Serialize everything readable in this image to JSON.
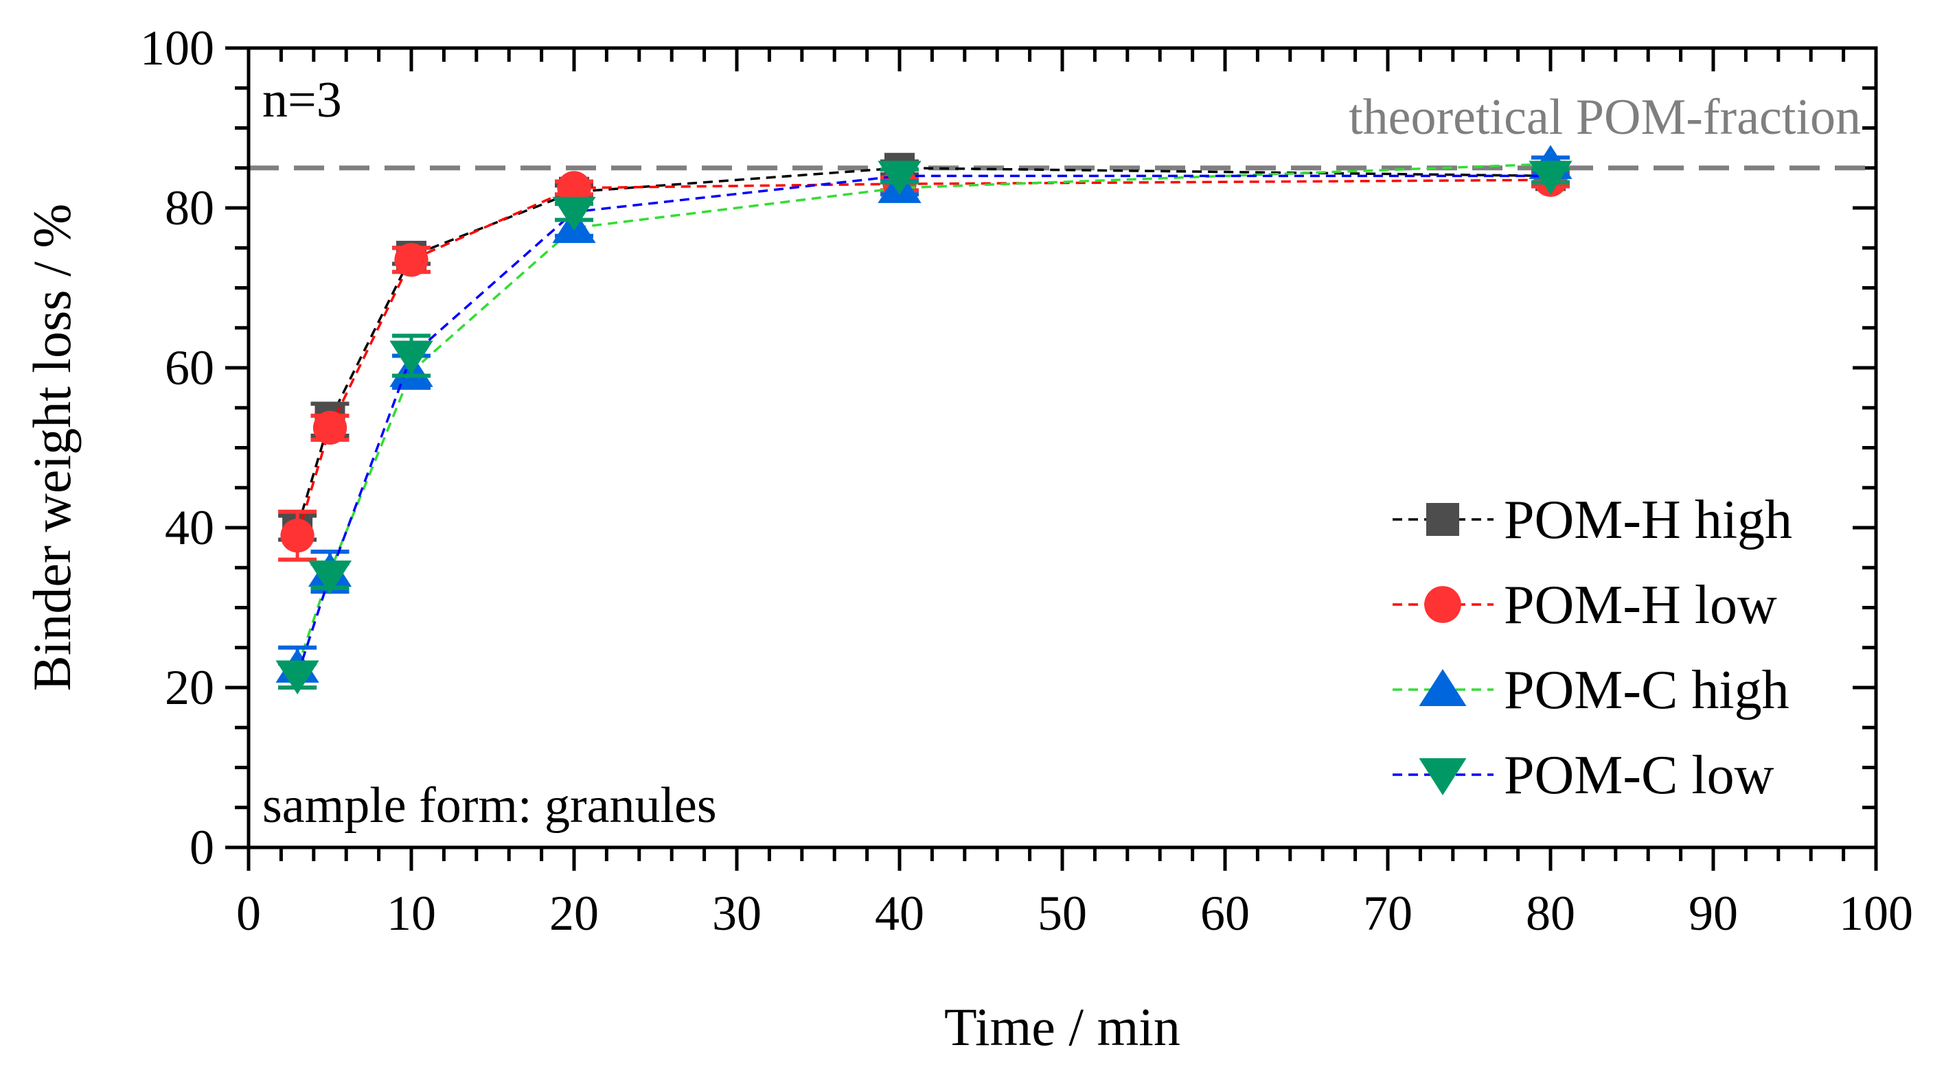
{
  "chart_data": {
    "type": "line",
    "title": "",
    "xlabel": "Time / min",
    "ylabel": "Binder weight loss / %",
    "xlim": [
      0,
      100
    ],
    "ylim": [
      0,
      100
    ],
    "xticks": [
      0,
      10,
      20,
      30,
      40,
      50,
      60,
      70,
      80,
      90,
      100
    ],
    "yticks": [
      0,
      20,
      40,
      60,
      80,
      100
    ],
    "grid": false,
    "legend_position": "right",
    "annotations": {
      "top_left": "n=3",
      "bottom_left": "sample form: granules"
    },
    "reference_line": {
      "y": 85,
      "label": "theoretical POM-fraction",
      "color": "#7f7f7f"
    },
    "series": [
      {
        "name": "POM-H high",
        "marker": "square",
        "marker_color": "#4d4d4d",
        "line_color": "#000000",
        "x": [
          3,
          5,
          10,
          20,
          40,
          80
        ],
        "y": [
          40.0,
          53.5,
          74.0,
          82.0,
          85.0,
          84.0
        ],
        "err": [
          1.5,
          2.0,
          1.0,
          0.8,
          0.8,
          0.8
        ]
      },
      {
        "name": "POM-H low",
        "marker": "circle",
        "marker_color": "#ff3333",
        "line_color": "#ff0000",
        "x": [
          3,
          5,
          10,
          20,
          40,
          80
        ],
        "y": [
          39.0,
          52.5,
          73.5,
          82.5,
          83.0,
          83.5
        ],
        "err": [
          3.0,
          1.5,
          1.5,
          0.8,
          0.8,
          0.8
        ]
      },
      {
        "name": "POM-C high",
        "marker": "triangle-up",
        "marker_color": "#0066dd",
        "line_color": "#33dd33",
        "x": [
          3,
          5,
          10,
          20,
          40,
          80
        ],
        "y": [
          22.5,
          34.5,
          59.5,
          77.5,
          82.5,
          85.5
        ],
        "err": [
          2.5,
          2.5,
          2.0,
          1.0,
          0.8,
          0.8
        ]
      },
      {
        "name": "POM-C low",
        "marker": "triangle-down",
        "marker_color": "#009966",
        "line_color": "#0000ff",
        "x": [
          3,
          5,
          10,
          20,
          40,
          80
        ],
        "y": [
          21.5,
          34.0,
          61.5,
          79.5,
          84.0,
          84.0
        ],
        "err": [
          1.5,
          1.5,
          2.5,
          1.0,
          0.8,
          0.8
        ]
      }
    ]
  }
}
